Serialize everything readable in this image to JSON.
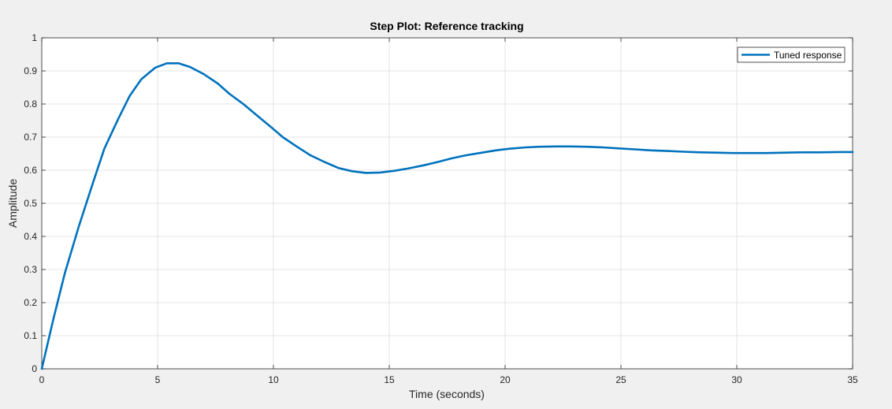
{
  "chart_data": {
    "type": "line",
    "title": "Step Plot: Reference tracking",
    "xlabel": "Time (seconds)",
    "ylabel": "Amplitude",
    "xlim": [
      0,
      35
    ],
    "ylim": [
      0,
      1
    ],
    "x_ticks": [
      "0",
      "5",
      "10",
      "15",
      "20",
      "25",
      "30",
      "35"
    ],
    "y_ticks": [
      "0",
      "0.1",
      "0.2",
      "0.3",
      "0.4",
      "0.5",
      "0.6",
      "0.7",
      "0.8",
      "0.9",
      "1"
    ],
    "grid": true,
    "legend_position": "top-right",
    "series": [
      {
        "name": "Tuned response",
        "color": "#0072bd",
        "x": [
          0,
          0.5,
          1.0,
          1.6,
          2.2,
          2.7,
          3.3,
          3.8,
          4.3,
          4.9,
          5.4,
          5.9,
          6.4,
          7.0,
          7.6,
          8.1,
          8.7,
          9.3,
          9.9,
          10.4,
          11.0,
          11.6,
          12.2,
          12.8,
          13.4,
          14.0,
          14.6,
          15.2,
          15.8,
          16.5,
          17.1,
          17.7,
          18.3,
          19.0,
          19.6,
          20.2,
          20.9,
          21.5,
          22.2,
          22.8,
          23.5,
          24.2,
          24.9,
          25.6,
          26.3,
          27.0,
          27.7,
          28.4,
          29.1,
          29.8,
          30.6,
          31.3,
          32.1,
          32.9,
          33.6,
          34.4,
          35.0
        ],
        "y": [
          0,
          0.15,
          0.29,
          0.43,
          0.56,
          0.665,
          0.755,
          0.825,
          0.875,
          0.91,
          0.923,
          0.923,
          0.912,
          0.89,
          0.862,
          0.831,
          0.8,
          0.765,
          0.73,
          0.7,
          0.672,
          0.645,
          0.625,
          0.607,
          0.597,
          0.592,
          0.593,
          0.598,
          0.605,
          0.615,
          0.625,
          0.636,
          0.645,
          0.653,
          0.66,
          0.665,
          0.669,
          0.671,
          0.672,
          0.672,
          0.671,
          0.669,
          0.666,
          0.663,
          0.66,
          0.658,
          0.656,
          0.654,
          0.653,
          0.652,
          0.652,
          0.652,
          0.653,
          0.654,
          0.654,
          0.655,
          0.655
        ]
      }
    ]
  }
}
